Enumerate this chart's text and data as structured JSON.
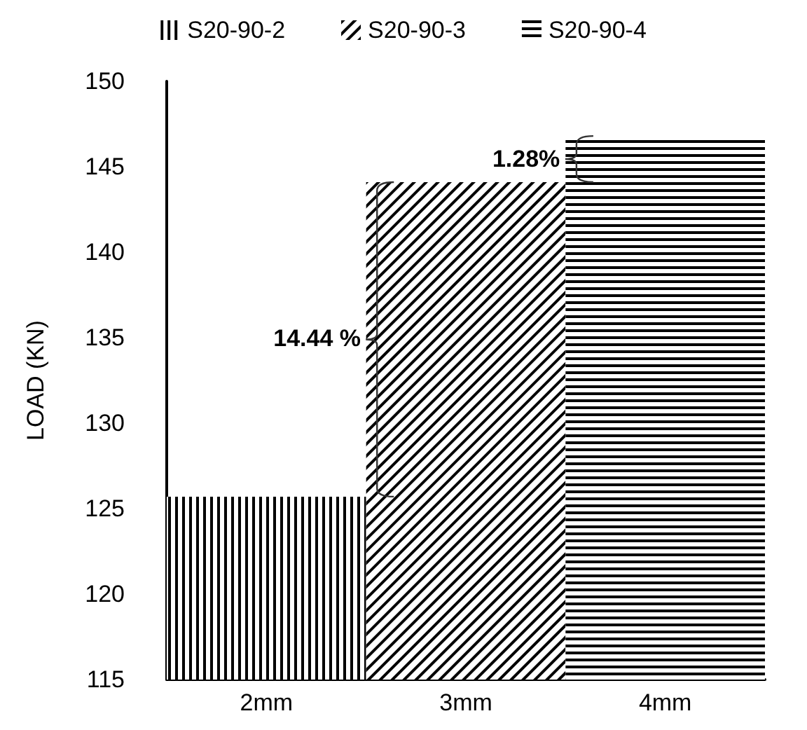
{
  "chart_data": {
    "type": "bar",
    "ylabel": "LOAD (KN)",
    "categories": [
      "2mm",
      "3mm",
      "4mm"
    ],
    "series": [
      {
        "name": "S20-90-2",
        "color": "#000000",
        "values": [
          125.7,
          null,
          null
        ]
      },
      {
        "name": "S20-90-3",
        "color": "#000000",
        "values": [
          null,
          144.1,
          null
        ]
      },
      {
        "name": "S20-90-4",
        "color": "#000000",
        "values": [
          null,
          null,
          146.8
        ]
      }
    ],
    "ylim": [
      115,
      150
    ],
    "yticks": [
      115,
      120,
      125,
      130,
      135,
      140,
      145,
      150
    ],
    "grid": false,
    "legend": "top",
    "annotations": [
      "14.44 %",
      "1.28%"
    ]
  }
}
